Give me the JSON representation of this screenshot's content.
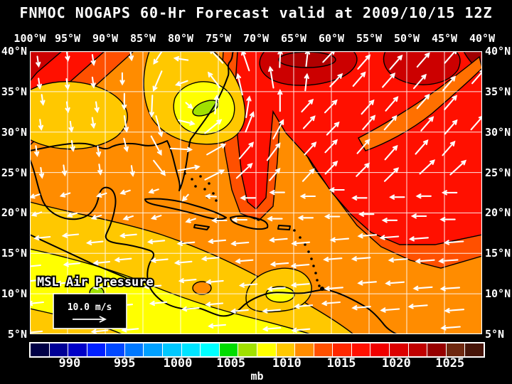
{
  "title": "FNMOC NOGAPS 60-Hr Forecast valid at 2009/10/15 12Z",
  "axes": {
    "lon_labels": [
      "100°W",
      "95°W",
      "90°W",
      "85°W",
      "80°W",
      "75°W",
      "70°W",
      "65°W",
      "60°W",
      "55°W",
      "50°W",
      "45°W",
      "40°W"
    ],
    "lat_labels": [
      "40°N",
      "35°N",
      "30°N",
      "25°N",
      "20°N",
      "15°N",
      "10°N",
      "5°N"
    ]
  },
  "map": {
    "field_label": "MSL Air Pressure",
    "wind_scale": {
      "label": "10.0 m/s"
    },
    "palette": {
      "base_orange": "#FF8C00",
      "vermilion": "#FF5000",
      "red": "#FF1000",
      "dark_red": "#CC0000",
      "deeper_red": "#B00000",
      "maroon": "#A00000",
      "streak_orange": "#FF7000",
      "gold": "#FFC800",
      "yellow": "#FFFF00",
      "green": "#A0E000",
      "contour": "#000000",
      "coast": "#000000",
      "grid": "#FFFFFF",
      "arrows": "#FFFFFF",
      "frame": "#FFFFFF",
      "label_text": "#FFFFFF",
      "box_bg": "#000000"
    }
  },
  "colorbar": {
    "unit": "mb",
    "tick_labels": [
      "990",
      "995",
      "1000",
      "1005",
      "1010",
      "1015",
      "1020",
      "1025"
    ],
    "tick_positions_pct": [
      8.9,
      21.0,
      32.7,
      44.4,
      56.7,
      68.7,
      80.8,
      92.6
    ],
    "segment_colors": [
      "#000046",
      "#000096",
      "#0000C8",
      "#0020FF",
      "#0048FF",
      "#0078FF",
      "#00A0FF",
      "#00C8FF",
      "#00E4FF",
      "#00FFFF",
      "#00DC00",
      "#A0E000",
      "#FFFF00",
      "#FFC800",
      "#FF8C00",
      "#FF5000",
      "#FF2800",
      "#FF1000",
      "#F00000",
      "#DC0000",
      "#C00000",
      "#960000",
      "#6E2810",
      "#461408"
    ]
  },
  "chart_data": {
    "type": "map",
    "model": "FNMOC NOGAPS",
    "forecast_hour": 60,
    "valid_time": "2009/10/15 12Z",
    "variable": "Mean sea-level air pressure (mb) with wind vectors",
    "region": {
      "lon_range": [
        "100W",
        "40W"
      ],
      "lat_range": [
        "5N",
        "40N"
      ],
      "grid_interval_deg": 5
    },
    "pressure_scale_mb": {
      "min": 990,
      "max": 1025,
      "tick_step": 5
    },
    "wind_reference_ms": 10.0,
    "features": [
      {
        "type": "low",
        "approx_location": "77W 32N, US southeast coast",
        "approx_central_pressure_mb": 1002
      },
      {
        "type": "low",
        "approx_location": "88W 10N, SW Caribbean",
        "approx_central_pressure_mb": 1004
      },
      {
        "type": "low_area",
        "approx_location": "93W 33N, Texas/Louisiana",
        "approx_pressure_mb": 1008
      },
      {
        "type": "high_area",
        "approx_location": "NW Atlantic 70W-45W, 35N-40N",
        "approx_pressure_mb": 1020
      },
      {
        "type": "flow",
        "description": "Easterly trade winds across the Caribbean and tropical Atlantic; cyclonic circulation around the SE US low; strong southwesterlies over the NW Atlantic"
      }
    ]
  }
}
